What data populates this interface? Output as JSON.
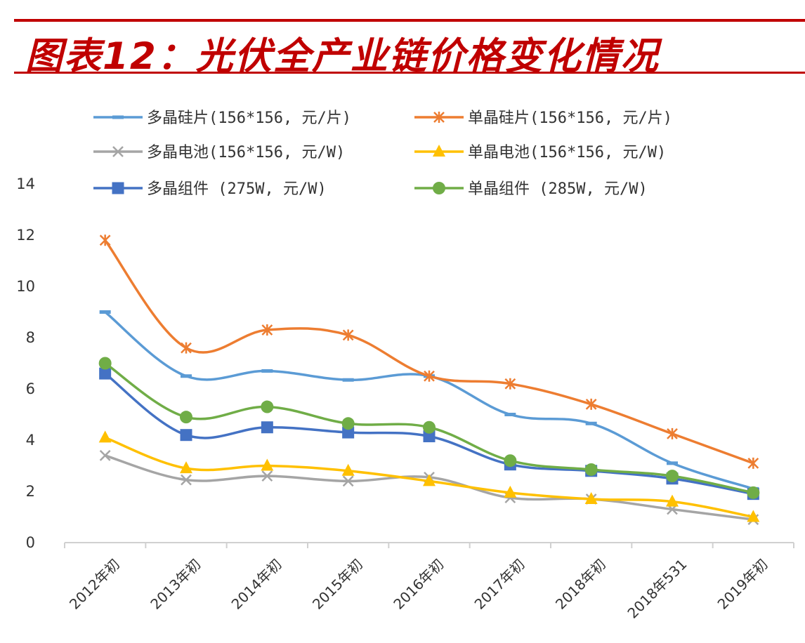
{
  "title": "图表12：光伏全产业链价格变化情况",
  "chart_data": {
    "type": "line",
    "title": "图表12：光伏全产业链价格变化情况",
    "categories": [
      "2012年初",
      "2013年初",
      "2014年初",
      "2015年初",
      "2016年初",
      "2017年初",
      "2018年初",
      "2018年531",
      "2019年初"
    ],
    "ylim": [
      0,
      14
    ],
    "yticks": [
      0,
      2,
      4,
      6,
      8,
      10,
      12,
      14
    ],
    "grid": false,
    "legend_position": "top",
    "series": [
      {
        "name": "多晶硅片(156*156, 元/片)",
        "color": "#5b9bd5",
        "marker": "dash",
        "values": [
          9.0,
          6.5,
          6.7,
          6.35,
          6.5,
          5.0,
          4.65,
          3.1,
          2.1
        ]
      },
      {
        "name": "单晶硅片(156*156, 元/片)",
        "color": "#ed7d31",
        "marker": "asterisk",
        "values": [
          11.8,
          7.6,
          8.3,
          8.1,
          6.5,
          6.2,
          5.4,
          4.25,
          3.1
        ]
      },
      {
        "name": "多晶电池(156*156, 元/W)",
        "color": "#a5a5a5",
        "marker": "x",
        "values": [
          3.4,
          2.45,
          2.6,
          2.4,
          2.55,
          1.75,
          1.7,
          1.3,
          0.9
        ]
      },
      {
        "name": "单晶电池(156*156, 元/W)",
        "color": "#ffc000",
        "marker": "triangle",
        "values": [
          4.1,
          2.9,
          3.0,
          2.8,
          2.4,
          1.95,
          1.7,
          1.6,
          1.0
        ]
      },
      {
        "name": "多晶组件 (275W, 元/W)",
        "color": "#4472c4",
        "marker": "square",
        "values": [
          6.6,
          4.2,
          4.5,
          4.3,
          4.15,
          3.05,
          2.8,
          2.5,
          1.9
        ]
      },
      {
        "name": "单晶组件 (285W, 元/W)",
        "color": "#70ad47",
        "marker": "circle",
        "values": [
          7.0,
          4.9,
          5.3,
          4.65,
          4.5,
          3.2,
          2.85,
          2.6,
          1.95
        ]
      }
    ]
  }
}
